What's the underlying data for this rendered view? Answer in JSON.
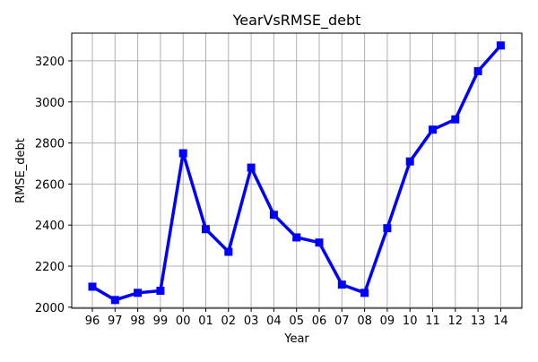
{
  "chart_data": {
    "type": "line",
    "title": "YearVsRMSE_debt",
    "xlabel": "Year",
    "ylabel": "RMSE_debt",
    "categories": [
      "96",
      "97",
      "98",
      "99",
      "00",
      "01",
      "02",
      "03",
      "04",
      "05",
      "06",
      "07",
      "08",
      "09",
      "10",
      "11",
      "12",
      "13",
      "14"
    ],
    "values": [
      2100,
      2035,
      2070,
      2080,
      2750,
      2380,
      2270,
      2680,
      2450,
      2340,
      2315,
      2110,
      2070,
      2385,
      2710,
      2865,
      2915,
      3150,
      3275
    ],
    "ylim": [
      1995,
      3335
    ],
    "yticks": [
      2000,
      2200,
      2400,
      2600,
      2800,
      3000,
      3200
    ],
    "grid": true,
    "colors": {
      "line": "#0000ff",
      "grid": "#b0b0b0",
      "axes": "#000000"
    },
    "marker": "square"
  }
}
